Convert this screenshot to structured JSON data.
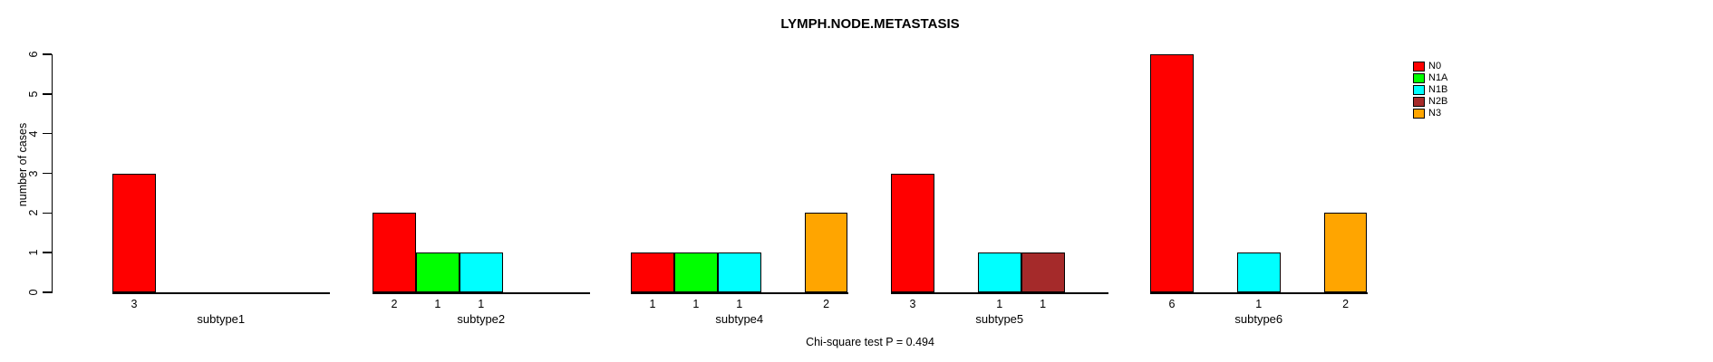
{
  "chart_data": {
    "type": "bar",
    "title": "LYMPH.NODE.METASTASIS",
    "ylabel": "number of cases",
    "xlabel": "",
    "footnote": "Chi-square test P = 0.494",
    "ylim": [
      0,
      6
    ],
    "yticks": [
      0,
      1,
      2,
      3,
      4,
      5,
      6
    ],
    "grid": false,
    "legend_position": "top-right",
    "bar_border_color": "#000000",
    "categories": [
      "subtype1",
      "subtype2",
      "subtype4",
      "subtype5",
      "subtype6"
    ],
    "series": [
      {
        "name": "N0",
        "color": "#FF0000",
        "values": [
          3,
          2,
          1,
          3,
          6
        ]
      },
      {
        "name": "N1A",
        "color": "#00FF00",
        "values": [
          0,
          1,
          1,
          0,
          0
        ]
      },
      {
        "name": "N1B",
        "color": "#00FFFF",
        "values": [
          0,
          1,
          1,
          1,
          1
        ]
      },
      {
        "name": "N2B",
        "color": "#A52A2A",
        "values": [
          0,
          0,
          0,
          1,
          0
        ]
      },
      {
        "name": "N3",
        "color": "#FFA500",
        "values": [
          0,
          0,
          2,
          0,
          2
        ]
      }
    ]
  }
}
